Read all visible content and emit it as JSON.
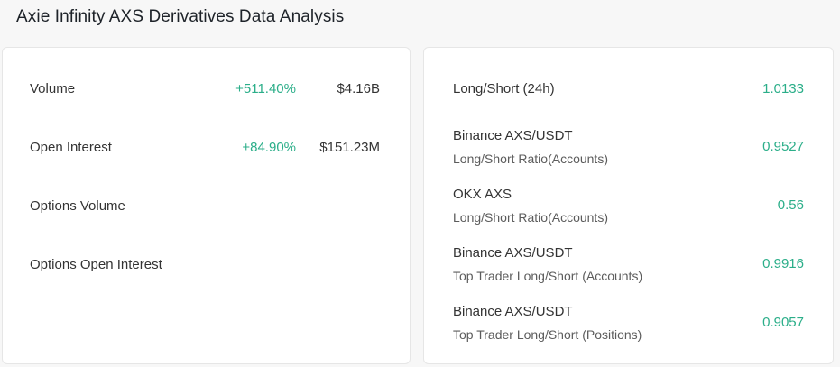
{
  "header": {
    "title": "Axie Infinity AXS Derivatives Data Analysis"
  },
  "colors": {
    "positive": "#2bae89",
    "text": "#333333"
  },
  "left_panel": {
    "rows": [
      {
        "label": "Volume",
        "change": "+511.40%",
        "value": "$4.16B"
      },
      {
        "label": "Open Interest",
        "change": "+84.90%",
        "value": "$151.23M"
      },
      {
        "label": "Options Volume",
        "change": "",
        "value": ""
      },
      {
        "label": "Options Open Interest",
        "change": "",
        "value": ""
      }
    ]
  },
  "right_panel": {
    "rows": [
      {
        "title": "Long/Short (24h)",
        "subtitle": "",
        "value": "1.0133"
      },
      {
        "title": "Binance AXS/USDT",
        "subtitle": "Long/Short Ratio(Accounts)",
        "value": "0.9527"
      },
      {
        "title": "OKX AXS",
        "subtitle": "Long/Short Ratio(Accounts)",
        "value": "0.56"
      },
      {
        "title": "Binance AXS/USDT",
        "subtitle": "Top Trader Long/Short (Accounts)",
        "value": "0.9916"
      },
      {
        "title": "Binance AXS/USDT",
        "subtitle": "Top Trader Long/Short (Positions)",
        "value": "0.9057"
      }
    ]
  }
}
